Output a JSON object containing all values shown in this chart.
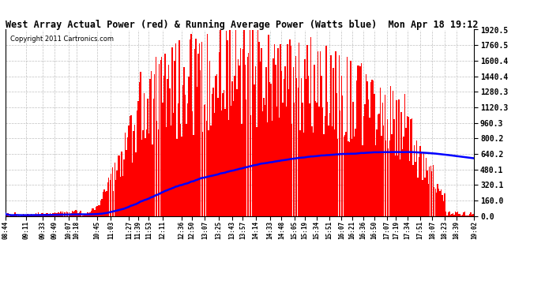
{
  "title": "West Array Actual Power (red) & Running Average Power (Watts blue)  Mon Apr 18 19:12",
  "copyright": "Copyright 2011 Cartronics.com",
  "bg_color": "#ffffff",
  "plot_bg_color": "#ffffff",
  "grid_color": "#b0b0b0",
  "actual_color": "#ff0000",
  "avg_color": "#0000ff",
  "ylim": [
    0,
    1920.5
  ],
  "yticks": [
    0.0,
    160.0,
    320.1,
    480.1,
    640.2,
    800.2,
    960.3,
    1120.3,
    1280.3,
    1440.4,
    1600.4,
    1760.5,
    1920.5
  ],
  "ytick_labels": [
    "0.0",
    "160.0",
    "320.1",
    "480.1",
    "640.2",
    "800.2",
    "960.3",
    "1120.3",
    "1280.3",
    "1440.4",
    "1600.4",
    "1760.5",
    "1920.5"
  ],
  "x_labels": [
    "08:44",
    "09:11",
    "09:33",
    "09:49",
    "10:07",
    "10:18",
    "10:45",
    "11:03",
    "11:27",
    "11:39",
    "11:53",
    "12:11",
    "12:36",
    "12:50",
    "13:07",
    "13:25",
    "13:43",
    "13:57",
    "14:14",
    "14:33",
    "14:48",
    "15:05",
    "15:19",
    "15:34",
    "15:51",
    "16:07",
    "16:21",
    "16:36",
    "16:50",
    "17:07",
    "17:19",
    "17:34",
    "17:51",
    "18:07",
    "18:23",
    "18:39",
    "19:02"
  ]
}
